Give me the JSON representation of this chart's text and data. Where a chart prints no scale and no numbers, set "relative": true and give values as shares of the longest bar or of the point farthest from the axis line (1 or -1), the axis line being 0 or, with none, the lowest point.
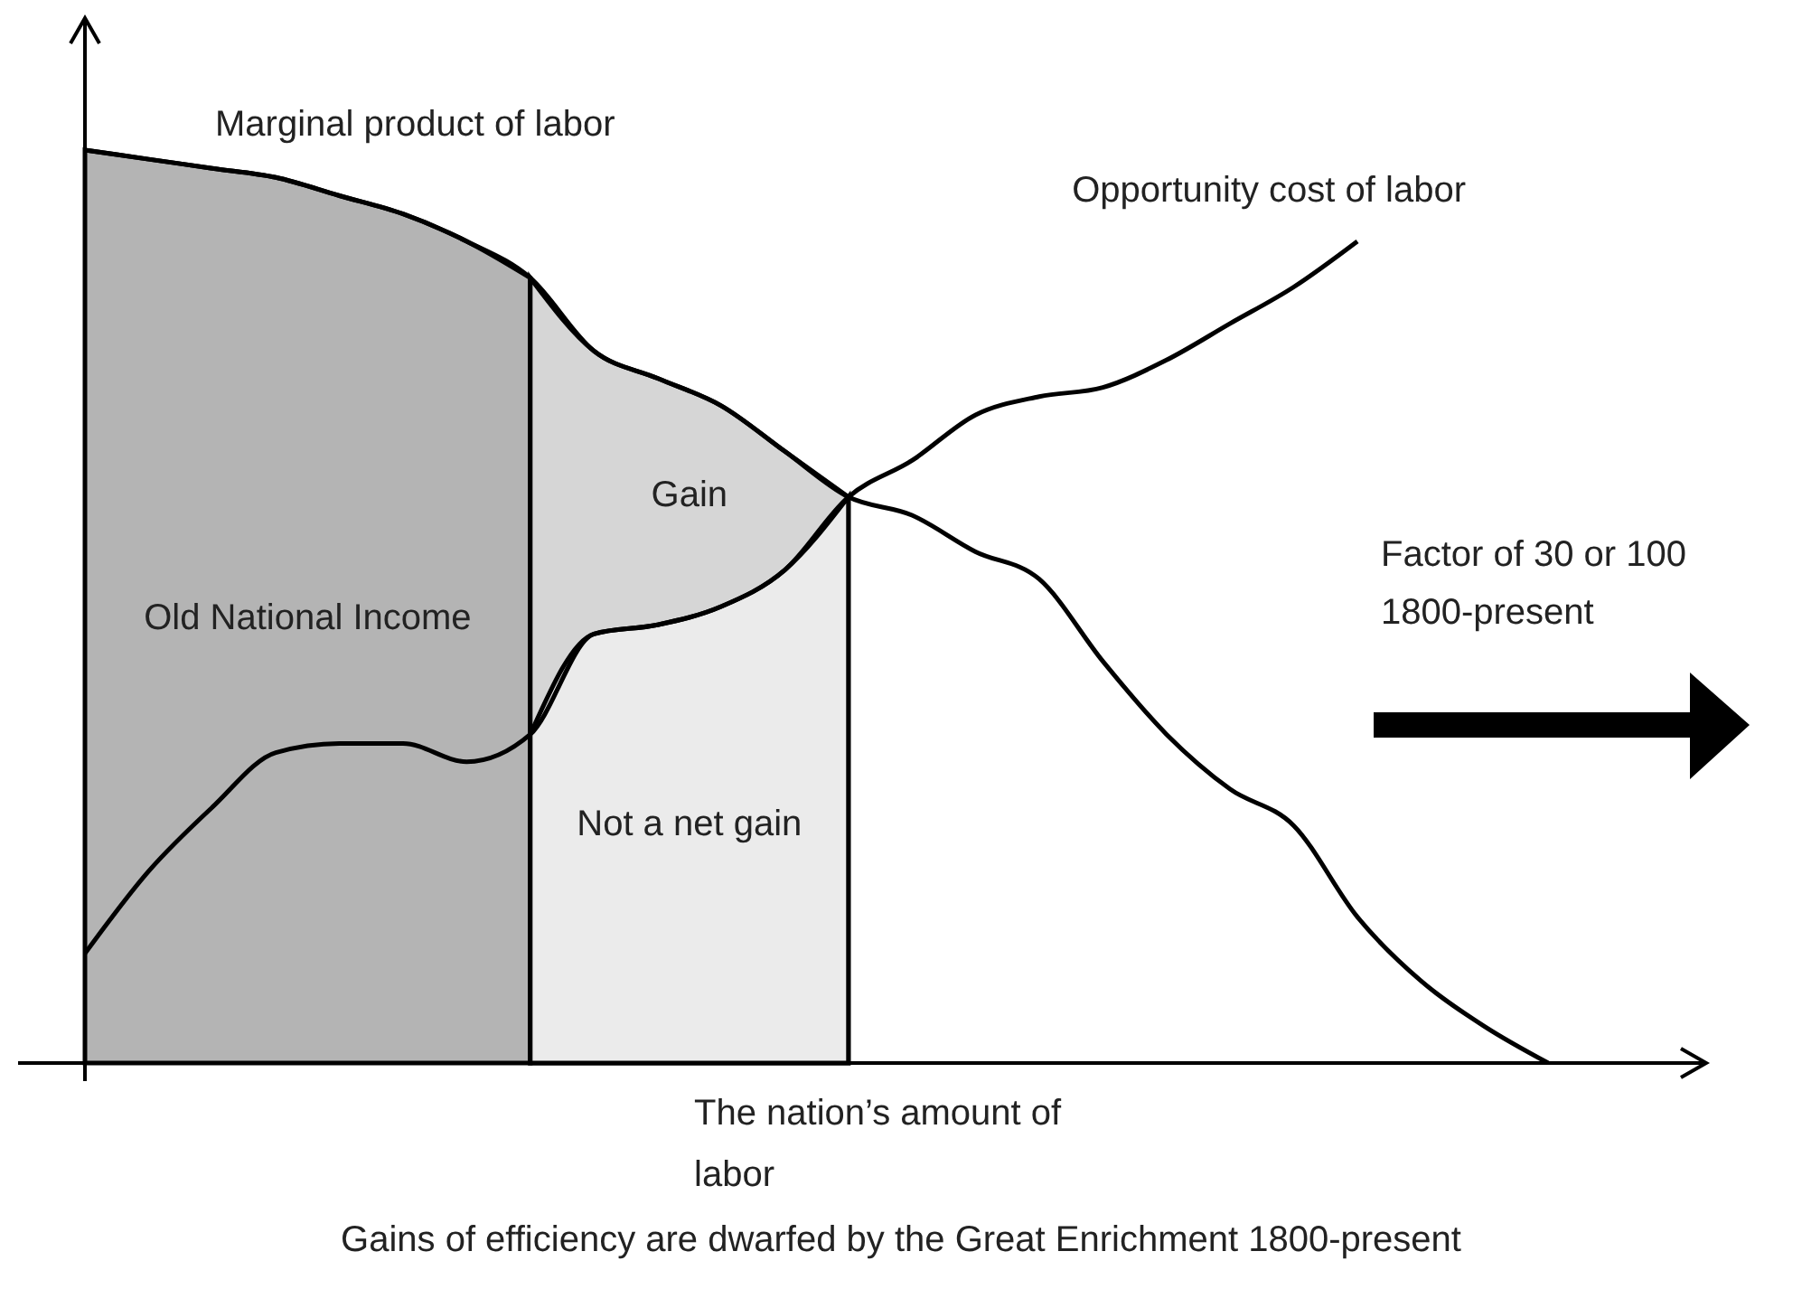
{
  "chart_data": {
    "type": "line",
    "relative": true,
    "title": "Gains of efficiency are dwarfed by the Great Enrichment 1800-present",
    "xlabel": "The nation’s amount of labor",
    "categories": [
      null,
      null,
      null,
      null,
      null,
      null,
      null,
      null,
      null,
      null,
      null,
      null,
      null,
      null,
      null,
      null,
      null,
      null,
      null,
      null,
      null,
      null,
      null,
      null,
      null,
      null
    ],
    "series": [
      {
        "name": "Old National Income",
        "type": "area",
        "color": "#b4b4b4",
        "values": [
          1.0,
          0.99,
          0.98,
          0.97,
          0.95,
          0.93,
          0.9,
          0.86,
          null,
          null,
          null,
          null,
          null,
          null,
          null,
          null,
          null,
          null,
          null,
          null,
          null,
          null,
          null,
          null,
          null,
          null
        ]
      },
      {
        "name": "Gain",
        "type": "area",
        "color": "#d6d6d6",
        "values": [
          null,
          null,
          null,
          null,
          null,
          null,
          null,
          0.86,
          0.78,
          0.75,
          0.72,
          0.67,
          0.62,
          null,
          null,
          null,
          null,
          null,
          null,
          null,
          null,
          null,
          null,
          null,
          null,
          null
        ]
      },
      {
        "name": "Not a net gain",
        "type": "area",
        "color": "#ebebeb",
        "values": [
          null,
          null,
          null,
          null,
          null,
          null,
          null,
          0.36,
          0.47,
          0.48,
          0.5,
          0.54,
          0.62,
          null,
          null,
          null,
          null,
          null,
          null,
          null,
          null,
          null,
          null,
          null,
          null,
          null
        ]
      },
      {
        "name": "Marginal product of labor",
        "color": "#000000",
        "values": [
          1.0,
          0.99,
          0.98,
          0.97,
          0.95,
          0.93,
          0.9,
          0.86,
          0.78,
          0.75,
          0.72,
          0.67,
          0.62,
          0.6,
          0.56,
          0.53,
          0.44,
          0.36,
          0.3,
          0.26,
          0.16,
          0.09,
          0.04,
          0,
          null,
          null
        ]
      },
      {
        "name": "Opportunity cost of labor",
        "color": "#000000",
        "values": [
          0.12,
          0.21,
          0.28,
          0.34,
          0.35,
          0.35,
          0.33,
          0.36,
          0.47,
          0.48,
          0.5,
          0.54,
          0.62,
          0.66,
          0.71,
          0.73,
          0.74,
          0.77,
          0.81,
          0.85,
          0.9,
          null,
          null,
          null,
          null,
          null
        ]
      }
    ],
    "annotations": [
      "Factor of 30 or 100\n1800-present"
    ],
    "grid": false,
    "line_style": "solid",
    "marker": "none"
  }
}
